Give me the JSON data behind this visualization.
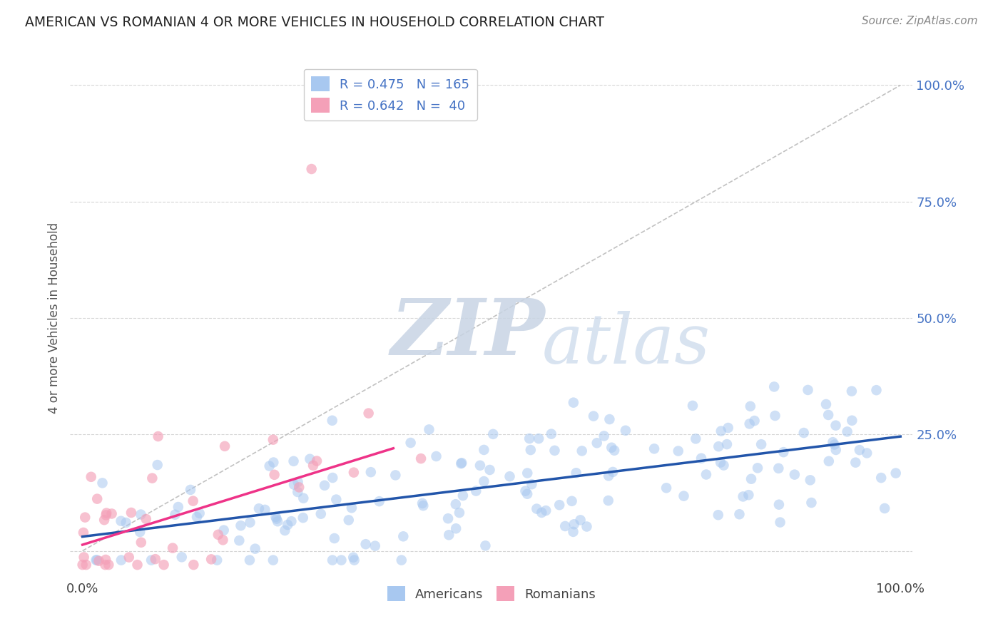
{
  "title": "AMERICAN VS ROMANIAN 4 OR MORE VEHICLES IN HOUSEHOLD CORRELATION CHART",
  "source": "Source: ZipAtlas.com",
  "ylabel": "4 or more Vehicles in Household",
  "american_color": "#a8c8f0",
  "romanian_color": "#f4a0b8",
  "american_line_color": "#2255aa",
  "romanian_line_color": "#ee3388",
  "diagonal_color": "#bbbbbb",
  "watermark_zip": "ZIP",
  "watermark_atlas": "atlas",
  "watermark_color": "#d0d8e8",
  "background_color": "#ffffff",
  "legend_am_label": "R = 0.475   N = 165",
  "legend_ro_label": "R = 0.642   N =  40",
  "legend_am_color": "#a8c8f0",
  "legend_ro_color": "#f4a0b8",
  "tick_color": "#4472c4",
  "label_color": "#555555",
  "N_american": 165,
  "N_romanian": 40
}
